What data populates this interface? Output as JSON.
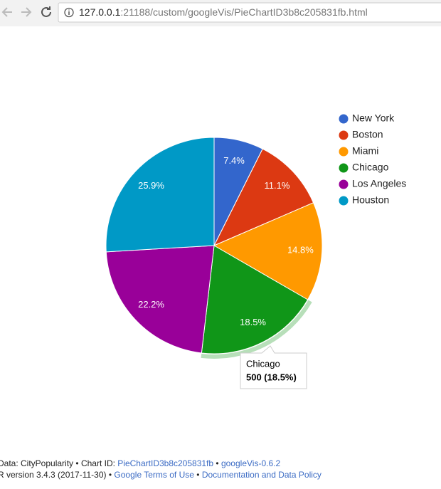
{
  "browser": {
    "url_host": "127.0.0.1",
    "url_rest": ":21188/custom/googleVis/PieChartID3b8c205831fb.html"
  },
  "chart_data": {
    "type": "pie",
    "categories": [
      "New York",
      "Boston",
      "Miami",
      "Chicago",
      "Los Angeles",
      "Houston"
    ],
    "values": [
      7.4,
      11.1,
      14.8,
      18.5,
      22.2,
      25.9
    ],
    "value_labels": [
      "7.4%",
      "11.1%",
      "14.8%",
      "18.5%",
      "22.2%",
      "25.9%"
    ],
    "colors": [
      "#3366cc",
      "#dc3912",
      "#ff9900",
      "#109618",
      "#990099",
      "#0099c6"
    ],
    "legend": "right",
    "tooltip": {
      "title": "Chicago",
      "text": "500 (18.5%)"
    }
  },
  "footer": {
    "separator": "•",
    "data_label": "Data: CityPopularity",
    "chart_id_label": "Chart ID:",
    "chart_id": "PieChartID3b8c205831fb",
    "version": "googleVis-0.6.2",
    "r_version": "R version 3.4.3 (2017-11-30)",
    "terms": "Google Terms of Use",
    "policy": "Documentation and Data Policy"
  }
}
